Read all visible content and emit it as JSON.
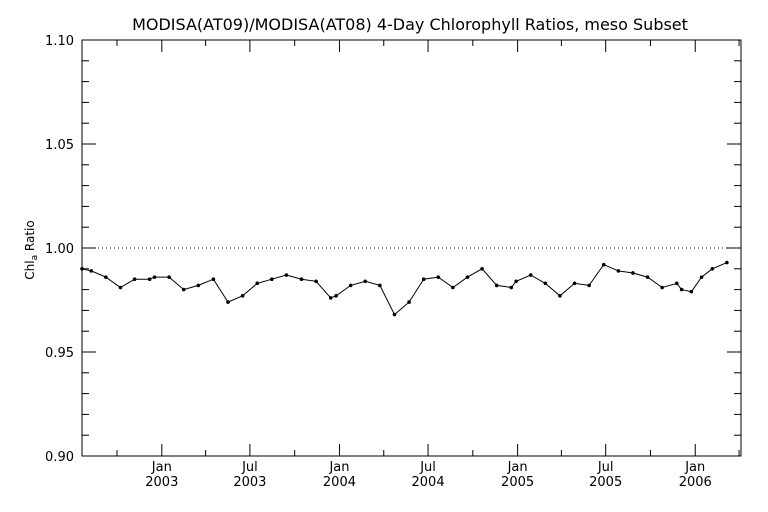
{
  "chart_data": {
    "type": "line",
    "title": "MODISA(AT09)/MODISA(AT08) 4-Day Chlorophyll Ratios, meso Subset",
    "ylabel": "Chl",
    "ylabel_sub": "a",
    "ylabel_suffix": " Ratio",
    "xlim": [
      "2002-07-21",
      "2006-04-05"
    ],
    "ylim": [
      0.9,
      1.1
    ],
    "y_ticks": [
      0.9,
      0.95,
      1.0,
      1.05,
      1.1
    ],
    "y_tick_labels": [
      "0.90",
      "0.95",
      "1.00",
      "1.05",
      "1.10"
    ],
    "x_ticks": [
      {
        "date": "2003-01-01",
        "month": "Jan",
        "year": "2003"
      },
      {
        "date": "2003-07-01",
        "month": "Jul",
        "year": "2003"
      },
      {
        "date": "2004-01-01",
        "month": "Jan",
        "year": "2004"
      },
      {
        "date": "2004-07-01",
        "month": "Jul",
        "year": "2004"
      },
      {
        "date": "2005-01-01",
        "month": "Jan",
        "year": "2005"
      },
      {
        "date": "2005-07-01",
        "month": "Jul",
        "year": "2005"
      },
      {
        "date": "2006-01-01",
        "month": "Jan",
        "year": "2006"
      }
    ],
    "reference_line": 1.0,
    "grid": false,
    "series": [
      {
        "x": [
          "2002-07-21",
          "2002-08-09",
          "2002-09-08",
          "2002-10-08",
          "2002-11-06",
          "2002-12-07",
          "2002-12-17",
          "2003-01-16",
          "2003-02-15",
          "2003-03-17",
          "2003-04-17",
          "2003-05-17",
          "2003-06-16",
          "2003-07-16",
          "2003-08-15",
          "2003-09-14",
          "2003-10-15",
          "2003-11-14",
          "2003-12-14",
          "2003-12-25",
          "2004-01-24",
          "2004-02-23",
          "2004-03-24",
          "2004-04-23",
          "2004-05-23",
          "2004-06-22",
          "2004-07-22",
          "2004-08-21",
          "2004-09-20",
          "2004-10-20",
          "2004-11-19",
          "2004-12-19",
          "2004-12-29",
          "2005-01-28",
          "2005-02-27",
          "2005-03-29",
          "2005-04-28",
          "2005-05-28",
          "2005-06-27",
          "2005-07-27",
          "2005-08-26",
          "2005-09-25",
          "2005-10-25",
          "2005-11-24",
          "2005-12-04",
          "2005-12-24",
          "2006-01-14",
          "2006-02-05",
          "2006-03-07"
        ],
        "y": [
          0.99,
          0.989,
          0.986,
          0.981,
          0.985,
          0.985,
          0.986,
          0.986,
          0.98,
          0.982,
          0.985,
          0.974,
          0.977,
          0.983,
          0.985,
          0.987,
          0.985,
          0.984,
          0.976,
          0.977,
          0.982,
          0.984,
          0.982,
          0.968,
          0.974,
          0.985,
          0.986,
          0.981,
          0.986,
          0.99,
          0.982,
          0.981,
          0.984,
          0.987,
          0.983,
          0.977,
          0.983,
          0.982,
          0.992,
          0.989,
          0.988,
          0.986,
          0.981,
          0.983,
          0.98,
          0.979,
          0.986,
          0.99,
          0.993
        ]
      }
    ]
  }
}
